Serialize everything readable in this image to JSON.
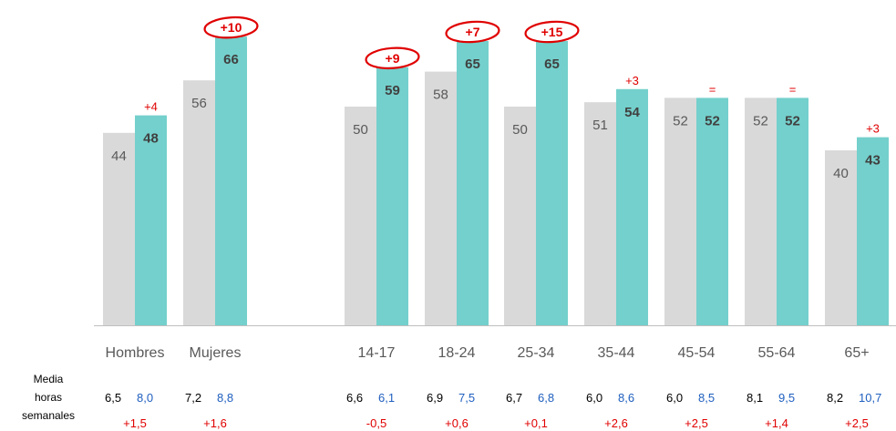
{
  "chart_data": {
    "type": "bar",
    "groups": [
      {
        "category": "Hombres",
        "values": [
          44,
          48
        ],
        "change": "+4",
        "highlight": false,
        "hours": [
          "6,5",
          "8,0"
        ],
        "hours_change": "+1,5"
      },
      {
        "category": "Mujeres",
        "values": [
          56,
          66
        ],
        "change": "+10",
        "highlight": true,
        "hours": [
          "7,2",
          "8,8"
        ],
        "hours_change": "+1,6"
      },
      {
        "category": "14-17",
        "values": [
          50,
          59
        ],
        "change": "+9",
        "highlight": true,
        "hours": [
          "6,6",
          "6,1"
        ],
        "hours_change": "-0,5"
      },
      {
        "category": "18-24",
        "values": [
          58,
          65
        ],
        "change": "+7",
        "highlight": true,
        "hours": [
          "6,9",
          "7,5"
        ],
        "hours_change": "+0,6"
      },
      {
        "category": "25-34",
        "values": [
          50,
          65
        ],
        "change": "+15",
        "highlight": true,
        "hours": [
          "6,7",
          "6,8"
        ],
        "hours_change": "+0,1"
      },
      {
        "category": "35-44",
        "values": [
          51,
          54
        ],
        "change": "+3",
        "highlight": false,
        "hours": [
          "6,0",
          "8,6"
        ],
        "hours_change": "+2,6"
      },
      {
        "category": "45-54",
        "values": [
          52,
          52
        ],
        "change": "=",
        "highlight": false,
        "hours": [
          "6,0",
          "8,5"
        ],
        "hours_change": "+2,5"
      },
      {
        "category": "55-64",
        "values": [
          52,
          52
        ],
        "change": "=",
        "highlight": false,
        "hours": [
          "8,1",
          "9,5"
        ],
        "hours_change": "+1,4"
      },
      {
        "category": "65+",
        "values": [
          40,
          43
        ],
        "change": "+3",
        "highlight": false,
        "hours": [
          "8,2",
          "10,7"
        ],
        "hours_change": "+2,5"
      }
    ],
    "series_colors": [
      "#d9d9d9",
      "#74d0cc"
    ],
    "ylim": [
      0,
      70
    ],
    "grid": false,
    "hours_label": [
      "Media",
      "horas",
      "semanales"
    ]
  }
}
